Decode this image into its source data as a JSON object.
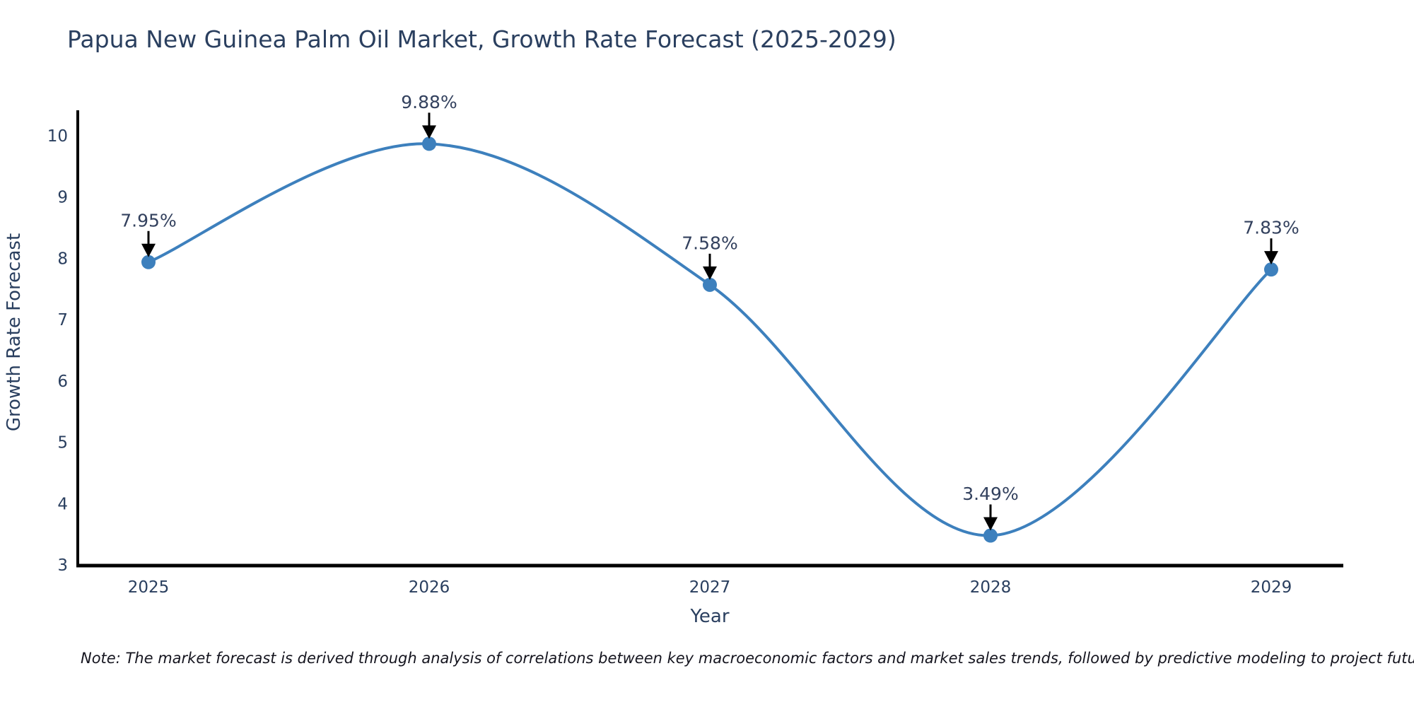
{
  "chart_data": {
    "type": "line",
    "line_shape": "spline",
    "title": "Papua New Guinea Palm Oil Market, Growth Rate Forecast (2025-2029)",
    "xlabel": "Year",
    "ylabel": "Growth Rate Forecast",
    "categories": [
      "2025",
      "2026",
      "2027",
      "2028",
      "2029"
    ],
    "values": [
      7.95,
      9.88,
      7.58,
      3.49,
      7.83
    ],
    "point_labels": [
      "7.95%",
      "9.88%",
      "7.58%",
      "3.49%",
      "7.83%"
    ],
    "yticks": [
      3,
      4,
      5,
      6,
      7,
      8,
      9,
      10
    ],
    "ylim": [
      3,
      10
    ],
    "grid": false,
    "legend": false,
    "annotation_style": "down-arrow",
    "colors": {
      "line": "#3d80bd",
      "marker": "#3d80bd",
      "annotation_arrow": "#000000",
      "axis_spine": "#000000",
      "text": "#2a3f5f",
      "note": "#15151f",
      "background": "#ffffff"
    },
    "note": "Note: The market forecast is derived through analysis of correlations between key macroeconomic factors and market sales trends, followed by predictive modeling to project future sales."
  }
}
